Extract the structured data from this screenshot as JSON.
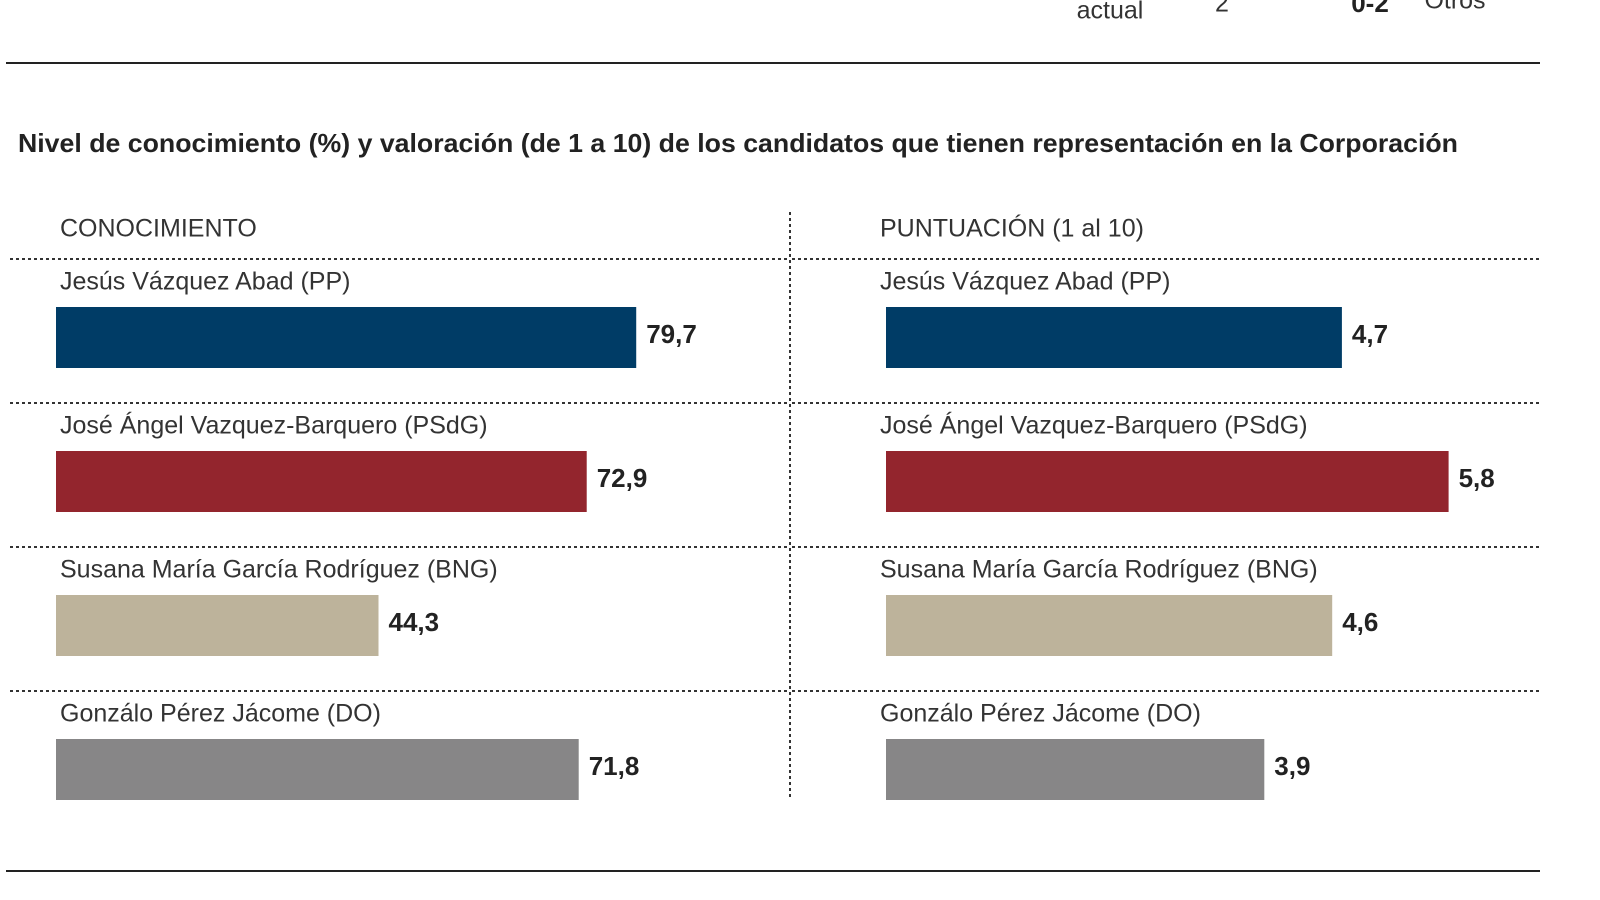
{
  "header_fragments": [
    "actual",
    "2",
    "0-2",
    "Otros"
  ],
  "title": "Nivel de conocimiento (%) y valoración (de 1 a 10) de los candidatos que tienen representación en la Corporación",
  "chart_data": [
    {
      "type": "bar",
      "title": "CONOCIMIENTO",
      "categories": [
        "Jesús Vázquez Abad (PP)",
        "José Ángel Vazquez-Barquero (PSdG)",
        "Susana María García Rodríguez (BNG)",
        "Gonzálo Pérez Jácome (DO)"
      ],
      "values": [
        79.7,
        72.9,
        44.3,
        71.8
      ],
      "value_labels": [
        "79,7",
        "72,9",
        "44,3",
        "71,8"
      ],
      "colors": [
        "#003c66",
        "#93252d",
        "#bdb39b",
        "#878687"
      ]
    },
    {
      "type": "bar",
      "title": "PUNTUACIÓN (1 al 10)",
      "categories": [
        "Jesús Vázquez Abad (PP)",
        "José Ángel Vazquez-Barquero (PSdG)",
        "Susana María García Rodríguez (BNG)",
        "Gonzálo Pérez Jácome (DO)"
      ],
      "values": [
        4.7,
        5.8,
        4.6,
        3.9
      ],
      "value_labels": [
        "4,7",
        "5,8",
        "4,6",
        "3,9"
      ],
      "colors": [
        "#003c66",
        "#93252d",
        "#bdb39b",
        "#878687"
      ]
    }
  ]
}
